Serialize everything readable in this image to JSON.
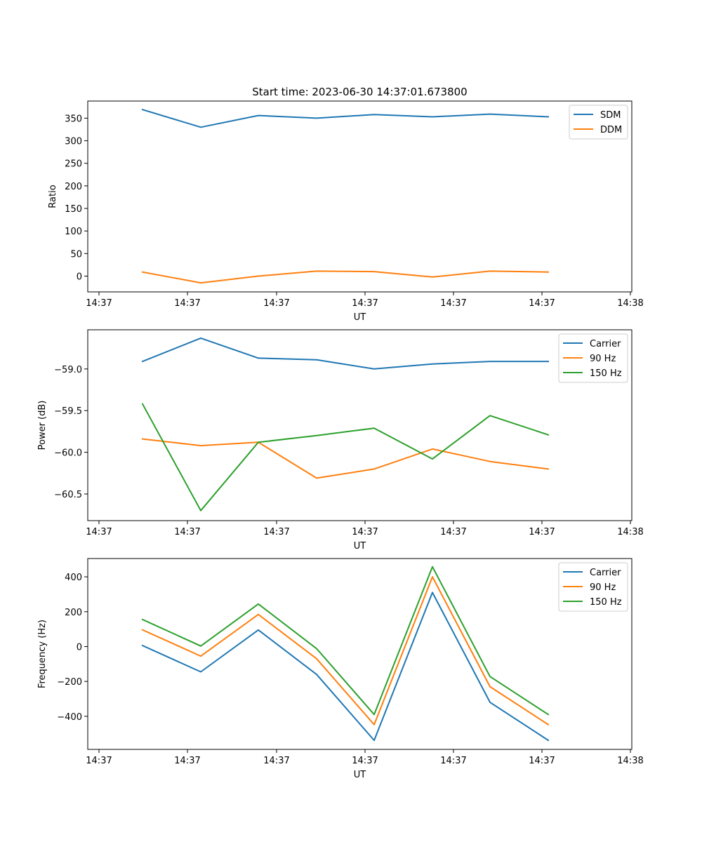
{
  "figure": {
    "title": "Start time: 2023-06-30 14:37:01.673800"
  },
  "colors": {
    "blue": "#1f77b4",
    "orange": "#ff7f0e",
    "green": "#2ca02c"
  },
  "chart_data": [
    {
      "type": "line",
      "title": "Start time: 2023-06-30 14:37:01.673800",
      "xlabel": "UT",
      "ylabel": "Ratio",
      "x_tick_labels": [
        "14:37",
        "14:37",
        "14:37",
        "14:37",
        "14:37",
        "14:37",
        "14:38"
      ],
      "y_ticks": [
        0,
        50,
        100,
        150,
        200,
        250,
        300,
        350
      ],
      "y_tick_labels": [
        "0",
        "50",
        "100",
        "150",
        "200",
        "250",
        "300",
        "350"
      ],
      "ylim": [
        -35,
        388
      ],
      "legend_position": "upper right",
      "series": [
        {
          "name": "SDM",
          "color": "#1f77b4",
          "values": [
            369,
            330,
            356,
            350,
            358,
            353,
            359,
            353
          ]
        },
        {
          "name": "DDM",
          "color": "#ff7f0e",
          "values": [
            9,
            -15,
            0,
            11,
            10,
            -2,
            11,
            9
          ]
        }
      ]
    },
    {
      "type": "line",
      "xlabel": "UT",
      "ylabel": "Power (dB)",
      "x_tick_labels": [
        "14:37",
        "14:37",
        "14:37",
        "14:37",
        "14:37",
        "14:37",
        "14:38"
      ],
      "y_ticks": [
        -60.5,
        -60.0,
        -59.5,
        -59.0
      ],
      "y_tick_labels": [
        "−60.5",
        "−60.0",
        "−59.5",
        "−59.0"
      ],
      "ylim": [
        -60.82,
        -58.53
      ],
      "legend_position": "upper right",
      "series": [
        {
          "name": "Carrier",
          "color": "#1f77b4",
          "values": [
            -58.91,
            -58.63,
            -58.87,
            -58.89,
            -59.0,
            -58.94,
            -58.91,
            -58.91
          ]
        },
        {
          "name": "90 Hz",
          "color": "#ff7f0e",
          "values": [
            -59.84,
            -59.92,
            -59.88,
            -60.31,
            -60.2,
            -59.96,
            -60.11,
            -60.2
          ]
        },
        {
          "name": "150 Hz",
          "color": "#2ca02c",
          "values": [
            -59.42,
            -60.7,
            -59.88,
            -59.8,
            -59.71,
            -60.08,
            -59.56,
            -59.79
          ]
        }
      ]
    },
    {
      "type": "line",
      "xlabel": "UT",
      "ylabel": "Frequency (Hz)",
      "x_tick_labels": [
        "14:37",
        "14:37",
        "14:37",
        "14:37",
        "14:37",
        "14:37",
        "14:38"
      ],
      "y_ticks": [
        -400,
        -200,
        0,
        200,
        400
      ],
      "y_tick_labels": [
        "−400",
        "−200",
        "0",
        "200",
        "400"
      ],
      "ylim": [
        -590,
        505
      ],
      "legend_position": "upper right",
      "series": [
        {
          "name": "Carrier",
          "color": "#1f77b4",
          "values": [
            6,
            -145,
            95,
            -160,
            -538,
            310,
            -320,
            -538
          ]
        },
        {
          "name": "90 Hz",
          "color": "#ff7f0e",
          "values": [
            96,
            -55,
            184,
            -70,
            -448,
            400,
            -230,
            -448
          ]
        },
        {
          "name": "150 Hz",
          "color": "#2ca02c",
          "values": [
            155,
            3,
            244,
            -12,
            -390,
            458,
            -172,
            -390
          ]
        }
      ]
    }
  ]
}
